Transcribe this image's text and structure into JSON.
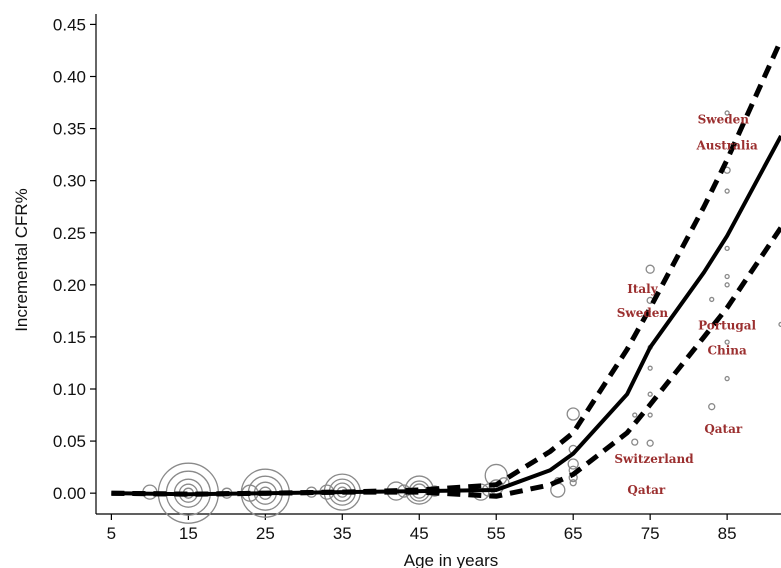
{
  "chart_data": {
    "type": "line",
    "title": "",
    "xlabel": "Age in years",
    "ylabel": "Incremental CFR%",
    "xlim": [
      3,
      92
    ],
    "ylim": [
      -0.02,
      0.46
    ],
    "x_ticks": [
      5,
      15,
      25,
      35,
      45,
      55,
      65,
      75,
      85
    ],
    "y_ticks": [
      0.0,
      0.05,
      0.1,
      0.15,
      0.2,
      0.25,
      0.3,
      0.35,
      0.4,
      0.45
    ],
    "y_tick_labels": [
      "0.00",
      "0.05",
      "0.10",
      "0.15",
      "0.20",
      "0.25",
      "0.30",
      "0.35",
      "0.40",
      "0.45"
    ],
    "grid": false,
    "series": [
      {
        "style": "solid",
        "x": [
          5,
          15,
          25,
          35,
          45,
          55,
          62,
          65,
          72,
          75,
          82,
          85,
          92
        ],
        "y": [
          0.0,
          -0.001,
          0.0,
          0.001,
          0.002,
          0.003,
          0.022,
          0.038,
          0.095,
          0.14,
          0.212,
          0.247,
          0.343
        ]
      },
      {
        "style": "dashed",
        "x": [
          5,
          15,
          25,
          35,
          45,
          55,
          62,
          65,
          72,
          75,
          82,
          85,
          92
        ],
        "y": [
          0.0,
          -0.001,
          0.0,
          0.001,
          0.003,
          0.008,
          0.04,
          0.058,
          0.138,
          0.178,
          0.275,
          0.32,
          0.435
        ]
      },
      {
        "style": "dashed",
        "x": [
          5,
          15,
          25,
          35,
          45,
          55,
          62,
          65,
          72,
          75,
          82,
          85,
          92
        ],
        "y": [
          0.0,
          -0.001,
          0.0,
          0.001,
          0.001,
          -0.003,
          0.008,
          0.018,
          0.058,
          0.085,
          0.15,
          0.178,
          0.255
        ]
      }
    ],
    "bubbles": [
      {
        "x": 15,
        "y": 0.0,
        "r": 30
      },
      {
        "x": 15,
        "y": 0.0,
        "r": 22
      },
      {
        "x": 15,
        "y": 0.0,
        "r": 14
      },
      {
        "x": 15,
        "y": 0.0,
        "r": 9
      },
      {
        "x": 15,
        "y": 0.0,
        "r": 5
      },
      {
        "x": 10,
        "y": 0.001,
        "r": 7
      },
      {
        "x": 25,
        "y": 0.0,
        "r": 24
      },
      {
        "x": 25,
        "y": 0.0,
        "r": 17
      },
      {
        "x": 25,
        "y": 0.0,
        "r": 11
      },
      {
        "x": 25,
        "y": 0.0,
        "r": 6
      },
      {
        "x": 23,
        "y": 0.0,
        "r": 8
      },
      {
        "x": 20,
        "y": 0.0,
        "r": 5
      },
      {
        "x": 35,
        "y": 0.001,
        "r": 18
      },
      {
        "x": 35,
        "y": 0.001,
        "r": 13
      },
      {
        "x": 35,
        "y": 0.001,
        "r": 9
      },
      {
        "x": 35,
        "y": 0.001,
        "r": 5
      },
      {
        "x": 33,
        "y": 0.001,
        "r": 7
      },
      {
        "x": 31,
        "y": 0.001,
        "r": 5
      },
      {
        "x": 45,
        "y": 0.003,
        "r": 14
      },
      {
        "x": 45,
        "y": 0.002,
        "r": 10
      },
      {
        "x": 45,
        "y": 0.002,
        "r": 7
      },
      {
        "x": 43,
        "y": 0.002,
        "r": 6
      },
      {
        "x": 42,
        "y": 0.002,
        "r": 9
      },
      {
        "x": 47,
        "y": 0.002,
        "r": 5
      },
      {
        "x": 55,
        "y": 0.017,
        "r": 11
      },
      {
        "x": 55,
        "y": 0.006,
        "r": 7
      },
      {
        "x": 54,
        "y": 0.003,
        "r": 6
      },
      {
        "x": 56,
        "y": 0.01,
        "r": 5
      },
      {
        "x": 53,
        "y": 0.001,
        "r": 8
      },
      {
        "x": 65,
        "y": 0.076,
        "r": 6
      },
      {
        "x": 65,
        "y": 0.042,
        "r": 4
      },
      {
        "x": 65,
        "y": 0.028,
        "r": 5
      },
      {
        "x": 65,
        "y": 0.022,
        "r": 4
      },
      {
        "x": 65,
        "y": 0.015,
        "r": 4
      },
      {
        "x": 65,
        "y": 0.01,
        "r": 3
      },
      {
        "x": 63,
        "y": 0.003,
        "r": 7
      },
      {
        "x": 63,
        "y": 0.012,
        "r": 3
      },
      {
        "x": 75,
        "y": 0.215,
        "r": 4
      },
      {
        "x": 75,
        "y": 0.185,
        "r": 3
      },
      {
        "x": 75,
        "y": 0.14,
        "r": 2
      },
      {
        "x": 75,
        "y": 0.12,
        "r": 2
      },
      {
        "x": 75,
        "y": 0.095,
        "r": 2
      },
      {
        "x": 75,
        "y": 0.075,
        "r": 2
      },
      {
        "x": 75,
        "y": 0.048,
        "r": 3
      },
      {
        "x": 73,
        "y": 0.049,
        "r": 3
      },
      {
        "x": 73,
        "y": 0.075,
        "r": 2
      },
      {
        "x": 85,
        "y": 0.365,
        "r": 2
      },
      {
        "x": 85,
        "y": 0.31,
        "r": 3
      },
      {
        "x": 85,
        "y": 0.29,
        "r": 2
      },
      {
        "x": 85,
        "y": 0.235,
        "r": 2
      },
      {
        "x": 85,
        "y": 0.208,
        "r": 2
      },
      {
        "x": 85,
        "y": 0.2,
        "r": 2
      },
      {
        "x": 85,
        "y": 0.145,
        "r": 2
      },
      {
        "x": 85,
        "y": 0.11,
        "r": 2
      },
      {
        "x": 83,
        "y": 0.083,
        "r": 3
      },
      {
        "x": 83,
        "y": 0.186,
        "r": 2
      },
      {
        "x": 92,
        "y": 0.162,
        "r": 2
      }
    ],
    "annotations": [
      {
        "text": "Sweden",
        "x": 84.5,
        "y": 0.355
      },
      {
        "text": "Australia",
        "x": 85.0,
        "y": 0.33
      },
      {
        "text": "Italy",
        "x": 74.0,
        "y": 0.192
      },
      {
        "text": "Sweden",
        "x": 74.0,
        "y": 0.169
      },
      {
        "text": "Portugal",
        "x": 85.0,
        "y": 0.157
      },
      {
        "text": "China",
        "x": 85.0,
        "y": 0.133
      },
      {
        "text": "Qatar",
        "x": 84.5,
        "y": 0.058
      },
      {
        "text": "Switzerland",
        "x": 75.5,
        "y": 0.029
      },
      {
        "text": "Qatar",
        "x": 74.5,
        "y": -0.001
      }
    ]
  }
}
